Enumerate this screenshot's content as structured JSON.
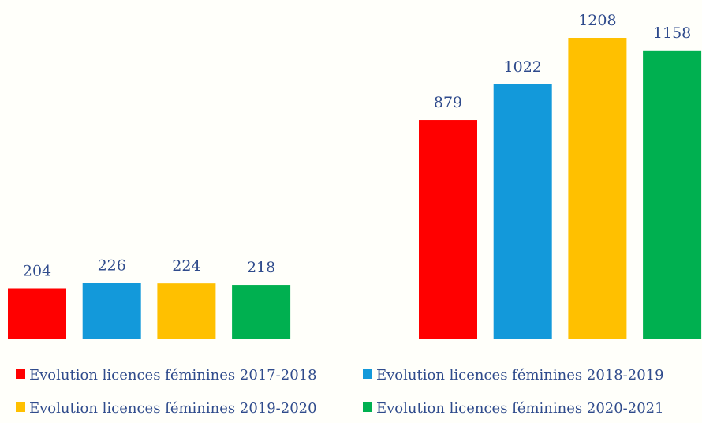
{
  "chart_data": {
    "type": "bar",
    "categories": [
      null,
      null
    ],
    "series": [
      {
        "name": "Evolution licences féminines 2017-2018",
        "color": "#ff0000",
        "values": [
          204,
          879
        ]
      },
      {
        "name": "Evolution licences féminines 2018-2019",
        "color": "#1399da",
        "values": [
          226,
          1022
        ]
      },
      {
        "name": "Evolution licences féminines 2019-2020",
        "color": "#ffc000",
        "values": [
          224,
          1208
        ]
      },
      {
        "name": "Evolution licences féminines 2020-2021",
        "color": "#00b050",
        "values": [
          218,
          1158
        ]
      }
    ]
  }
}
